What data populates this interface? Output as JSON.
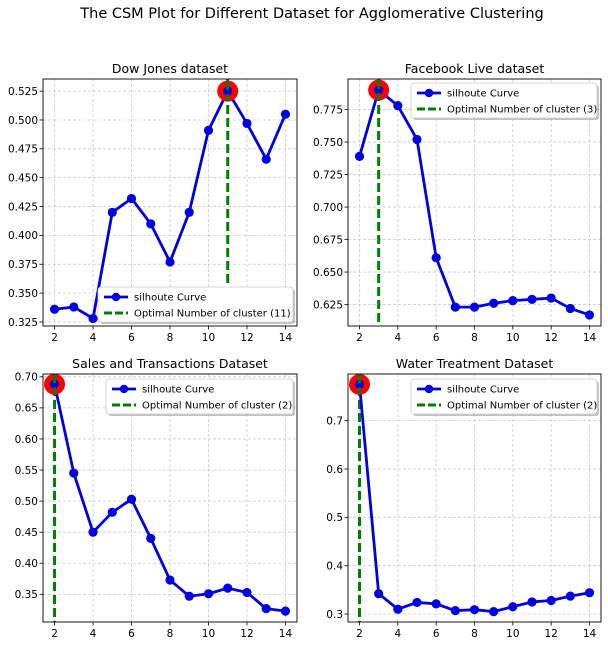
{
  "figure": {
    "suptitle": "The CSM Plot for Different Dataset for Agglomerative Clustering"
  },
  "legend_labels": {
    "curve": "silhoute Curve",
    "optimal_prefix": "Optimal Number of cluster"
  },
  "colors": {
    "curve": "#0000e0",
    "optimal_line": "#008000",
    "highlight": "#ff0000",
    "grid": "#cccccc"
  },
  "chart_data": [
    {
      "type": "line",
      "title": "Dow Jones dataset",
      "legend_placement": "lower-right",
      "x": [
        2,
        3,
        4,
        5,
        6,
        7,
        8,
        9,
        10,
        11,
        12,
        13,
        14
      ],
      "series": [
        {
          "name": "silhoute Curve",
          "values": [
            0.336,
            0.338,
            0.328,
            0.42,
            0.432,
            0.41,
            0.377,
            0.42,
            0.491,
            0.525,
            0.497,
            0.466,
            0.505
          ]
        }
      ],
      "optimal_k": 11,
      "optimal_label": "Optimal Number of cluster (11)",
      "xlim": [
        1.4,
        14.6
      ],
      "ylim": [
        0.3215,
        0.5355
      ],
      "xticks": [
        2,
        4,
        6,
        8,
        10,
        12,
        14
      ],
      "yticks": [
        0.325,
        0.35,
        0.375,
        0.4,
        0.425,
        0.45,
        0.475,
        0.5,
        0.525
      ],
      "ytick_labels": [
        "0.325",
        "0.350",
        "0.375",
        "0.400",
        "0.425",
        "0.450",
        "0.475",
        "0.500",
        "0.525"
      ],
      "grid": true
    },
    {
      "type": "line",
      "title": "Facebook Live dataset",
      "legend_placement": "upper-right",
      "x": [
        2,
        3,
        4,
        5,
        6,
        7,
        8,
        9,
        10,
        11,
        12,
        13,
        14
      ],
      "series": [
        {
          "name": "silhoute Curve",
          "values": [
            0.739,
            0.79,
            0.778,
            0.752,
            0.661,
            0.623,
            0.623,
            0.626,
            0.628,
            0.629,
            0.63,
            0.622,
            0.617
          ]
        }
      ],
      "optimal_k": 3,
      "optimal_label": "Optimal Number of cluster (3)",
      "xlim": [
        1.4,
        14.6
      ],
      "ylim": [
        0.6085,
        0.7985
      ],
      "xticks": [
        2,
        4,
        6,
        8,
        10,
        12,
        14
      ],
      "yticks": [
        0.625,
        0.65,
        0.675,
        0.7,
        0.725,
        0.75,
        0.775
      ],
      "ytick_labels": [
        "0.625",
        "0.650",
        "0.675",
        "0.700",
        "0.725",
        "0.750",
        "0.775"
      ],
      "grid": true
    },
    {
      "type": "line",
      "title": "Sales and Transactions Dataset",
      "legend_placement": "upper-right",
      "x": [
        2,
        3,
        4,
        5,
        6,
        7,
        8,
        9,
        10,
        11,
        12,
        13,
        14
      ],
      "series": [
        {
          "name": "silhoute Curve",
          "values": [
            0.688,
            0.545,
            0.45,
            0.482,
            0.503,
            0.44,
            0.373,
            0.347,
            0.351,
            0.36,
            0.353,
            0.327,
            0.323
          ]
        }
      ],
      "optimal_k": 2,
      "optimal_label": "Optimal Number of cluster (2)",
      "xlim": [
        1.4,
        14.6
      ],
      "ylim": [
        0.3055,
        0.7045
      ],
      "xticks": [
        2,
        4,
        6,
        8,
        10,
        12,
        14
      ],
      "yticks": [
        0.35,
        0.4,
        0.45,
        0.5,
        0.55,
        0.6,
        0.65,
        0.7
      ],
      "ytick_labels": [
        "0.35",
        "0.40",
        "0.45",
        "0.50",
        "0.55",
        "0.60",
        "0.65",
        "0.70"
      ],
      "grid": true
    },
    {
      "type": "line",
      "title": "Water Treatment Dataset",
      "legend_placement": "upper-right",
      "x": [
        2,
        3,
        4,
        5,
        6,
        7,
        8,
        9,
        10,
        11,
        12,
        13,
        14
      ],
      "series": [
        {
          "name": "silhoute Curve",
          "values": [
            0.775,
            0.342,
            0.31,
            0.324,
            0.321,
            0.307,
            0.309,
            0.305,
            0.315,
            0.325,
            0.328,
            0.337,
            0.344
          ]
        }
      ],
      "optimal_k": 2,
      "optimal_label": "Optimal Number of cluster (2)",
      "xlim": [
        1.4,
        14.6
      ],
      "ylim": [
        0.2835,
        0.7965
      ],
      "xticks": [
        2,
        4,
        6,
        8,
        10,
        12,
        14
      ],
      "yticks": [
        0.3,
        0.4,
        0.5,
        0.6,
        0.7
      ],
      "ytick_labels": [
        "0.3",
        "0.4",
        "0.5",
        "0.6",
        "0.7"
      ],
      "grid": true
    }
  ]
}
